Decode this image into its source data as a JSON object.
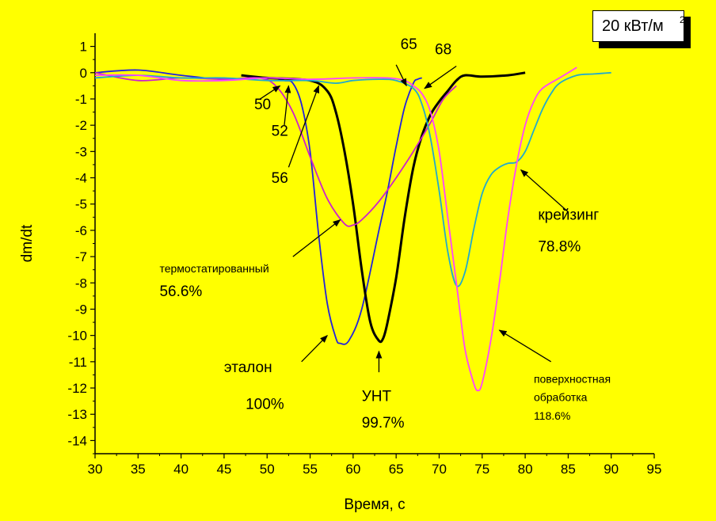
{
  "legend": {
    "text": "20 кВт/м",
    "sup": "2"
  },
  "chart_data": {
    "type": "line",
    "xlabel": "Время, с",
    "ylabel": "dm/dt",
    "xlim": [
      30,
      95
    ],
    "ylim": [
      -14.5,
      1.5
    ],
    "x_ticks": [
      30,
      35,
      40,
      45,
      50,
      55,
      60,
      65,
      70,
      75,
      80,
      85,
      90,
      95
    ],
    "y_ticks": [
      1,
      0,
      -1,
      -2,
      -3,
      -4,
      -5,
      -6,
      -7,
      -8,
      -9,
      -10,
      -11,
      -12,
      -13,
      -14
    ],
    "series": [
      {
        "name": "эталон",
        "color": "#2222DD",
        "points": [
          [
            30,
            0
          ],
          [
            35,
            0.1
          ],
          [
            40,
            -0.1
          ],
          [
            45,
            -0.25
          ],
          [
            50,
            -0.2
          ],
          [
            52,
            -0.3
          ],
          [
            53,
            -0.4
          ],
          [
            54,
            -1.2
          ],
          [
            55,
            -3.0
          ],
          [
            56,
            -6.2
          ],
          [
            57,
            -8.8
          ],
          [
            58,
            -10.1
          ],
          [
            58.5,
            -10.3
          ],
          [
            59.5,
            -10.2
          ],
          [
            61,
            -9.0
          ],
          [
            63,
            -6.0
          ],
          [
            64,
            -4.5
          ],
          [
            65,
            -2.8
          ],
          [
            66,
            -1.3
          ],
          [
            67,
            -0.4
          ],
          [
            67.5,
            -0.25
          ],
          [
            68,
            -0.2
          ]
        ]
      },
      {
        "name": "УНТ",
        "color": "#000000",
        "points": [
          [
            47,
            -0.1
          ],
          [
            50,
            -0.2
          ],
          [
            55,
            -0.3
          ],
          [
            57,
            -0.7
          ],
          [
            58,
            -1.5
          ],
          [
            59,
            -3.0
          ],
          [
            60,
            -5.0
          ],
          [
            61,
            -7.5
          ],
          [
            62,
            -9.5
          ],
          [
            63,
            -10.2
          ],
          [
            63.5,
            -10.1
          ],
          [
            64,
            -9.5
          ],
          [
            65,
            -7.8
          ],
          [
            66,
            -5.5
          ],
          [
            67,
            -3.6
          ],
          [
            68,
            -2.4
          ],
          [
            69,
            -1.6
          ],
          [
            70,
            -1.1
          ],
          [
            71,
            -0.7
          ],
          [
            72,
            -0.3
          ],
          [
            73,
            -0.1
          ],
          [
            75,
            -0.15
          ],
          [
            78,
            -0.1
          ],
          [
            80,
            0
          ]
        ]
      },
      {
        "name": "термостатированный",
        "color": "#CC22CC",
        "points": [
          [
            30,
            0
          ],
          [
            35,
            -0.3
          ],
          [
            40,
            -0.2
          ],
          [
            45,
            -0.25
          ],
          [
            49,
            -0.2
          ],
          [
            51,
            -0.5
          ],
          [
            53,
            -1.5
          ],
          [
            55,
            -3.2
          ],
          [
            57,
            -4.8
          ],
          [
            59,
            -5.75
          ],
          [
            60,
            -5.8
          ],
          [
            61,
            -5.6
          ],
          [
            63,
            -4.9
          ],
          [
            65,
            -4.0
          ],
          [
            67,
            -3.0
          ],
          [
            69,
            -1.9
          ],
          [
            70.5,
            -1.0
          ],
          [
            72,
            -0.5
          ]
        ]
      },
      {
        "name": "крейзинг",
        "color": "#22AACC",
        "points": [
          [
            30,
            -0.2
          ],
          [
            35,
            -0.1
          ],
          [
            40,
            -0.2
          ],
          [
            45,
            -0.2
          ],
          [
            50,
            -0.3
          ],
          [
            55,
            -0.3
          ],
          [
            58,
            -0.4
          ],
          [
            60,
            -0.3
          ],
          [
            63,
            -0.25
          ],
          [
            65,
            -0.3
          ],
          [
            67,
            -0.6
          ],
          [
            68,
            -1.2
          ],
          [
            69,
            -2.5
          ],
          [
            70,
            -4.5
          ],
          [
            71,
            -6.8
          ],
          [
            72,
            -8.1
          ],
          [
            73,
            -7.6
          ],
          [
            74,
            -6.0
          ],
          [
            75,
            -4.6
          ],
          [
            76,
            -3.9
          ],
          [
            77,
            -3.6
          ],
          [
            78,
            -3.45
          ],
          [
            79,
            -3.4
          ],
          [
            80,
            -3.0
          ],
          [
            81,
            -2.2
          ],
          [
            82,
            -1.4
          ],
          [
            83,
            -0.8
          ],
          [
            84,
            -0.4
          ],
          [
            86,
            -0.1
          ],
          [
            88,
            -0.05
          ],
          [
            90,
            0
          ]
        ]
      },
      {
        "name": "поверхностная обработка",
        "color": "#FF44FF",
        "points": [
          [
            30,
            -0.1
          ],
          [
            35,
            -0.1
          ],
          [
            40,
            -0.3
          ],
          [
            45,
            -0.3
          ],
          [
            50,
            -0.2
          ],
          [
            55,
            -0.25
          ],
          [
            60,
            -0.2
          ],
          [
            64,
            -0.2
          ],
          [
            66,
            -0.3
          ],
          [
            67,
            -0.5
          ],
          [
            68,
            -0.8
          ],
          [
            69,
            -1.5
          ],
          [
            70,
            -3.0
          ],
          [
            71,
            -5.5
          ],
          [
            72,
            -8.0
          ],
          [
            73,
            -10.5
          ],
          [
            74,
            -11.8
          ],
          [
            74.5,
            -12.1
          ],
          [
            75,
            -11.8
          ],
          [
            76,
            -10.2
          ],
          [
            77,
            -8.0
          ],
          [
            78,
            -5.5
          ],
          [
            79,
            -3.5
          ],
          [
            80,
            -2.0
          ],
          [
            81,
            -1.1
          ],
          [
            82,
            -0.6
          ],
          [
            84,
            -0.2
          ],
          [
            86,
            0.2
          ]
        ]
      }
    ],
    "annotations": [
      {
        "text": "50",
        "tx": 48.5,
        "ty": -1.4,
        "ax": 49.2,
        "ay": -1.0,
        "bx": 51.5,
        "by": -0.5
      },
      {
        "text": "52",
        "tx": 50.5,
        "ty": -2.4,
        "ax": 52.0,
        "ay": -2.0,
        "bx": 52.5,
        "by": -0.5
      },
      {
        "text": "56",
        "tx": 50.5,
        "ty": -4.2,
        "ax": 52.5,
        "ay": -3.6,
        "bx": 56.0,
        "by": -0.5
      },
      {
        "text": "65",
        "tx": 65.5,
        "ty": 0.9,
        "ax": 65.0,
        "ay": 0.3,
        "bx": 66.2,
        "by": -0.5
      },
      {
        "text": "68",
        "tx": 69.5,
        "ty": 0.7,
        "ax": 72.0,
        "ay": 0.25,
        "bx": 68.3,
        "by": -0.6
      },
      {
        "text": "эталон",
        "tx": 45.0,
        "ty": -11.4,
        "ax": 54.0,
        "ay": -11.0,
        "bx": 57.0,
        "by": -10.0
      },
      {
        "text": "УНТ",
        "tx": 61.0,
        "ty": -12.5,
        "ax": 63.0,
        "ay": -11.4,
        "bx": 63.0,
        "by": -10.6
      },
      {
        "text": "термостатированный",
        "tx": 37.5,
        "ty": -7.6,
        "ax": 53.0,
        "ay": -7.0,
        "bx": 58.5,
        "by": -5.6
      },
      {
        "text": "56.6%",
        "tx": 37.5,
        "ty": -8.5
      },
      {
        "text": "100%",
        "tx": 47.5,
        "ty": -12.8
      },
      {
        "text": "99.7%",
        "tx": 61.0,
        "ty": -13.5
      },
      {
        "text": "крейзинг",
        "tx": 81.5,
        "ty": -5.6,
        "ax": 85.0,
        "ay": -5.3,
        "bx": 79.5,
        "by": -3.7
      },
      {
        "text": "78.8%",
        "tx": 81.5,
        "ty": -6.8
      },
      {
        "text": "поверхностная",
        "tx": 81.0,
        "ty": -11.8,
        "ax": 83.0,
        "ay": -11.0,
        "bx": 77.0,
        "by": -9.8
      },
      {
        "text": "обработка",
        "tx": 81.0,
        "ty": -12.5
      },
      {
        "text": "118.6%",
        "tx": 81.0,
        "ty": -13.2
      }
    ]
  }
}
